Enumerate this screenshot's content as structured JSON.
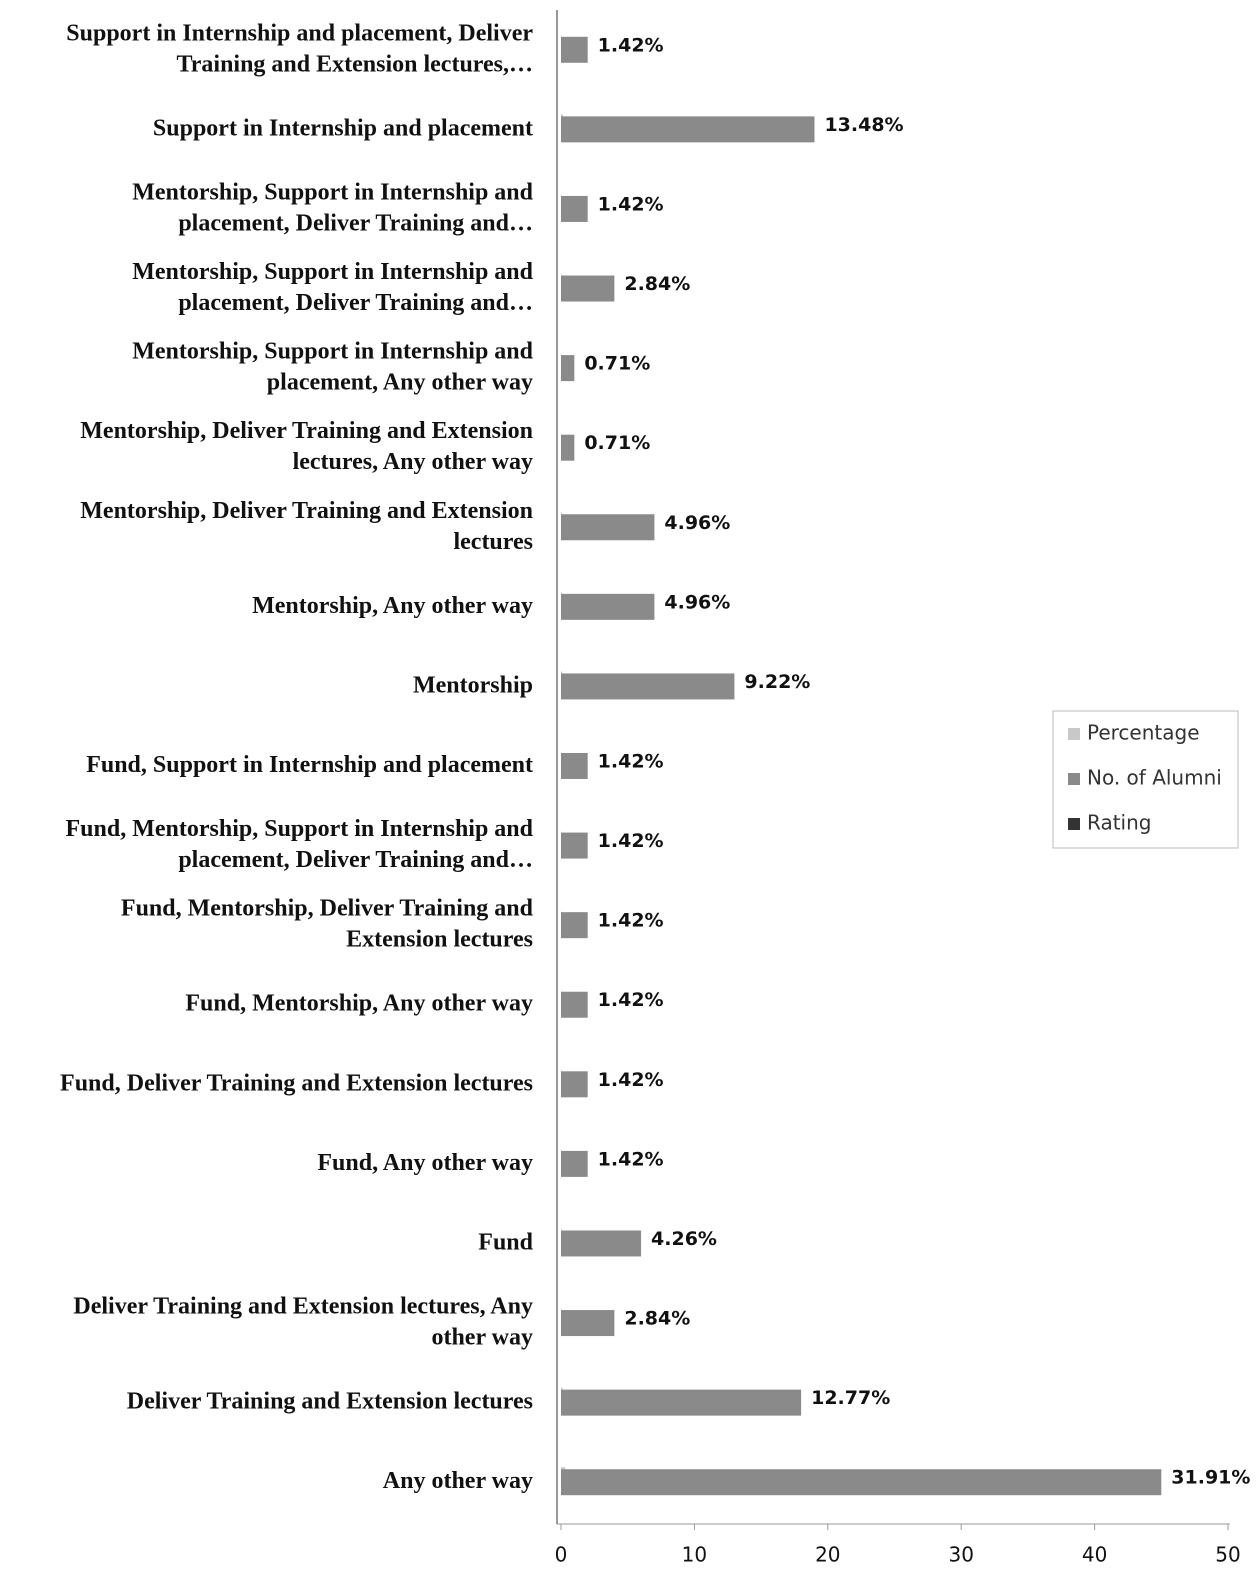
{
  "chart_data": {
    "type": "barh",
    "categories": [
      "Support in Internship and placement, Deliver Training and Extension lectures,…",
      "Support in Internship and placement",
      "Mentorship, Support in Internship and placement, Deliver Training and…",
      "Mentorship, Support in Internship and placement, Deliver Training and…",
      "Mentorship, Support in Internship and placement, Any other way",
      "Mentorship, Deliver Training and Extension lectures, Any other way",
      "Mentorship, Deliver Training and Extension lectures",
      "Mentorship, Any other way",
      "Mentorship",
      "Fund, Support in Internship and placement",
      "Fund, Mentorship, Support in Internship and placement, Deliver Training and…",
      "Fund, Mentorship, Deliver Training and Extension lectures",
      "Fund, Mentorship, Any other way",
      "Fund, Deliver Training and Extension lectures",
      "Fund, Any other way",
      "Fund",
      "Deliver Training and Extension lectures, Any other way",
      "Deliver Training and Extension lectures",
      "Any other way"
    ],
    "series": [
      {
        "name": "Percentage",
        "color": "#c8c8c8",
        "values": [
          0.0142,
          0.1348,
          0.0142,
          0.0284,
          0.0071,
          0.0071,
          0.0496,
          0.0496,
          0.0922,
          0.0142,
          0.0142,
          0.0142,
          0.0142,
          0.0142,
          0.0142,
          0.0426,
          0.0284,
          0.1277,
          0.3191
        ],
        "value_labels": [
          "1.42%",
          "13.48%",
          "1.42%",
          "2.84%",
          "0.71%",
          "0.71%",
          "4.96%",
          "4.96%",
          "9.22%",
          "1.42%",
          "1.42%",
          "1.42%",
          "1.42%",
          "1.42%",
          "1.42%",
          "4.26%",
          "2.84%",
          "12.77%",
          "31.91%"
        ]
      },
      {
        "name": "No. of Alumni",
        "color": "#8a8a8a",
        "values": [
          2,
          19,
          2,
          4,
          1,
          1,
          7,
          7,
          13,
          2,
          2,
          2,
          2,
          2,
          2,
          6,
          4,
          18,
          45
        ]
      },
      {
        "name": "Rating",
        "color": "#333333",
        "values": [
          null,
          null,
          null,
          null,
          null,
          null,
          null,
          null,
          null,
          null,
          null,
          null,
          null,
          null,
          null,
          null,
          null,
          null,
          null
        ]
      }
    ],
    "xlim": [
      0,
      50
    ],
    "xticks": [
      0,
      10,
      20,
      30,
      40,
      50
    ],
    "grid": false,
    "legend": "right"
  }
}
